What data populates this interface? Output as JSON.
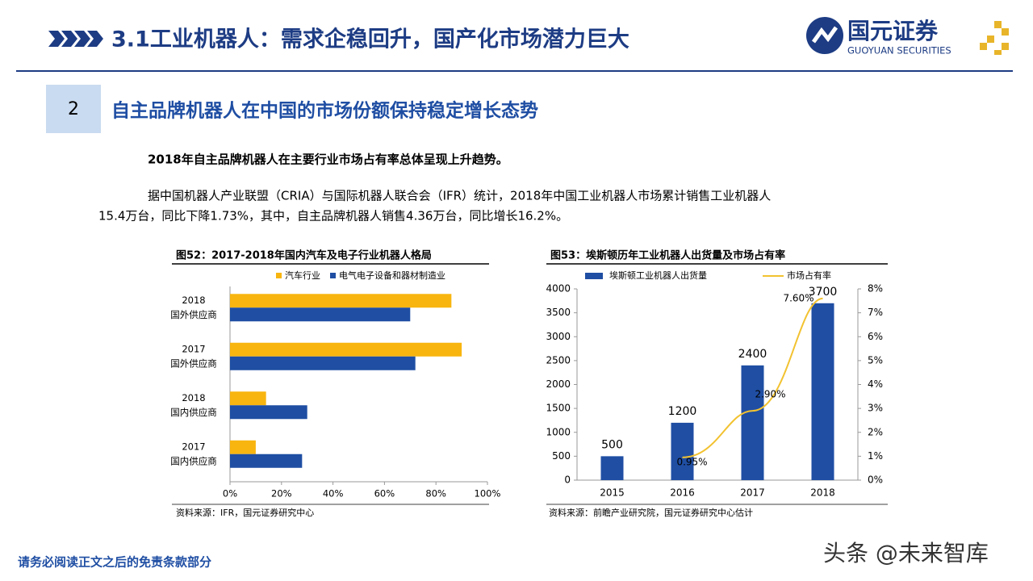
{
  "header": {
    "title": "3.1工业机器人：需求企稳回升，国产化市场潜力巨大",
    "logo_name": "国元证券",
    "logo_en": "GUOYUAN SECURITIES"
  },
  "section": {
    "number": "2",
    "heading": "自主品牌机器人在中国的市场份额保持稳定增长态势"
  },
  "body": {
    "lead": "2018年自主品牌机器人在主要行业市场占有率总体呈现上升趋势。",
    "paragraph": [
      "据中国机器人产业联盟（CRIA）与国际机器人联合会（IFR）统计，2018年中国工业机器人市场累计销售工业机器人",
      "15.4万台，同比下降1.73%，其中，自主品牌机器人销售4.36万台，同比增长16.2%。"
    ]
  },
  "chart_data": [
    {
      "type": "barh",
      "title": "图52：2017-2018年国内汽车及电子行业机器人格局",
      "categories": [
        [
          "2018",
          "国外供应商"
        ],
        [
          "2017",
          "国外供应商"
        ],
        [
          "2018",
          "国内供应商"
        ],
        [
          "2017",
          "国内供应商"
        ]
      ],
      "series": [
        {
          "name": "汽车行业",
          "color": "#f8b50f",
          "values": [
            86,
            90,
            14,
            10
          ]
        },
        {
          "name": "电气电子设备和器材制造业",
          "color": "#1f4ea3",
          "values": [
            70,
            72,
            30,
            28
          ]
        }
      ],
      "xlim": [
        0,
        100
      ],
      "xticks": [
        {
          "value": 0,
          "label": "0%"
        },
        {
          "value": 20,
          "label": "20%"
        },
        {
          "value": 40,
          "label": "40%"
        },
        {
          "value": 60,
          "label": "60%"
        },
        {
          "value": 80,
          "label": "80%"
        },
        {
          "value": 100,
          "label": "100%"
        }
      ],
      "source": "资料来源：IFR，国元证券研究中心"
    },
    {
      "type": "bar_line",
      "title": "图53：埃斯顿历年工业机器人出货量及市场占有率",
      "categories": [
        "2015",
        "2016",
        "2017",
        "2018"
      ],
      "series": [
        {
          "name": "埃斯顿工业机器人出货量",
          "type": "bar",
          "color": "#1f4ea3",
          "values": [
            500,
            1200,
            2400,
            3700
          ]
        },
        {
          "name": "市场占有率",
          "type": "line",
          "axis": "y2",
          "color": "#f2c230",
          "values": [
            null,
            0.95,
            2.9,
            7.6
          ],
          "value_labels": [
            null,
            "0.95%",
            "2.90%",
            "7.60%"
          ]
        }
      ],
      "ylim": [
        0,
        4000
      ],
      "yticks": [
        0,
        500,
        1000,
        1500,
        2000,
        2500,
        3000,
        3500,
        4000
      ],
      "y2lim": [
        0,
        8
      ],
      "y2ticks": [
        {
          "value": 0,
          "label": "0%"
        },
        {
          "value": 1,
          "label": "1%"
        },
        {
          "value": 2,
          "label": "2%"
        },
        {
          "value": 3,
          "label": "3%"
        },
        {
          "value": 4,
          "label": "4%"
        },
        {
          "value": 5,
          "label": "5%"
        },
        {
          "value": 6,
          "label": "6%"
        },
        {
          "value": 7,
          "label": "7%"
        },
        {
          "value": 8,
          "label": "8%"
        }
      ],
      "source": "资料来源：前瞻产业研究院，国元证券研究中心估计"
    }
  ],
  "footer": {
    "disclaimer": "请务必阅读正文之后的免责条款部分",
    "watermark": "头条 @未来智库"
  }
}
